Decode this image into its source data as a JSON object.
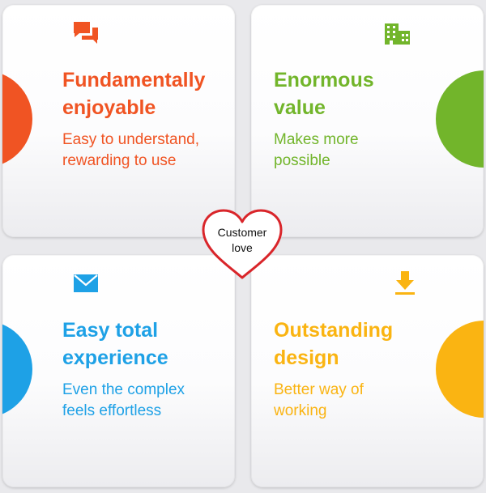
{
  "cards": [
    {
      "icon": "chat-bubbles-icon",
      "color": "#f05423",
      "title": [
        "Fundamentally",
        "enjoyable"
      ],
      "subtitle": [
        "Easy to understand,",
        "rewarding to use"
      ]
    },
    {
      "icon": "building-icon",
      "color": "#72b52b",
      "title": [
        "Enormous",
        "value"
      ],
      "subtitle": [
        "Makes more",
        "possible"
      ]
    },
    {
      "icon": "mail-icon",
      "color": "#1ea1e6",
      "title": [
        "Easy total",
        "experience"
      ],
      "subtitle": [
        "Even the complex",
        "feels effortless"
      ]
    },
    {
      "icon": "download-icon",
      "color": "#fab412",
      "title": [
        "Outstanding",
        "design"
      ],
      "subtitle": [
        "Better way of",
        "working"
      ]
    }
  ],
  "center": {
    "label": [
      "Customer",
      "love"
    ],
    "heart_color": "#d9252a"
  }
}
